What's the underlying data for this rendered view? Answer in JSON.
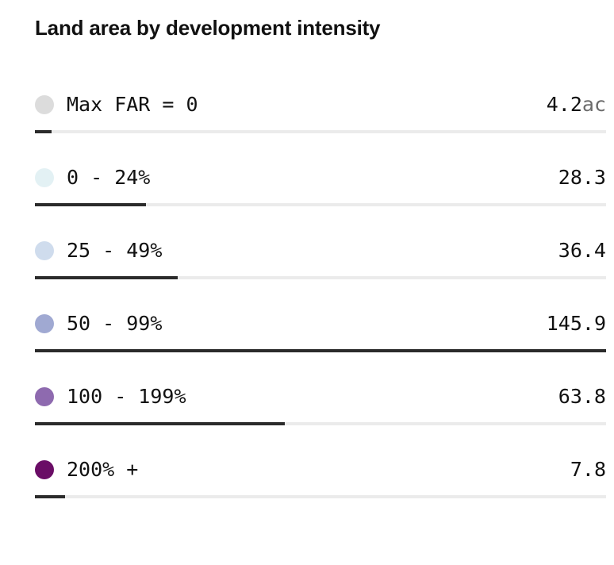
{
  "chart_data": {
    "type": "bar",
    "title": "Land area by development intensity",
    "unit": "ac",
    "categories": [
      "Max FAR = 0",
      "0 - 24%",
      "25 - 49%",
      "50 - 99%",
      "100 - 199%",
      "200% +"
    ],
    "values": [
      4.2,
      28.3,
      36.4,
      145.9,
      63.8,
      7.8
    ],
    "value_labels": [
      "4.2",
      "28.3",
      "36.4",
      "145.9",
      "63.8",
      "7.8"
    ],
    "colors": [
      "#dcdcdc",
      "#e3f1f4",
      "#cfdced",
      "#a0a9d2",
      "#8e6aaf",
      "#6a0d66"
    ],
    "xlim": [
      0,
      145.9
    ],
    "bar_color": "#2b2b2b",
    "track_color": "#ebebeb"
  }
}
